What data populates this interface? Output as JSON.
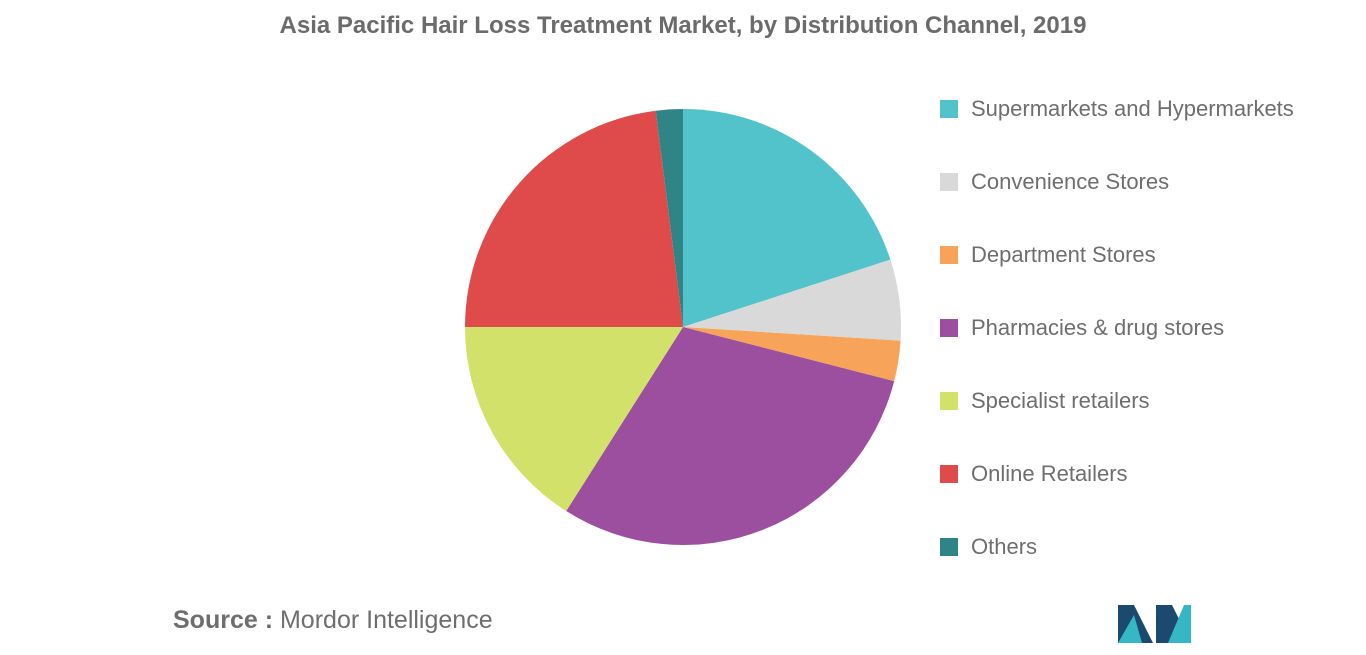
{
  "chart_data": {
    "type": "pie",
    "title": "Asia Pacific Hair Loss Treatment Market, by Distribution Channel, 2019",
    "start_angle_deg": 0,
    "direction": "clockwise",
    "legend_position": "right",
    "slices": [
      {
        "label": "Supermarkets and Hypermarkets",
        "value": 20,
        "color": "#52c3cb"
      },
      {
        "label": "Convenience Stores",
        "value": 6,
        "color": "#d9d9d9"
      },
      {
        "label": "Department Stores",
        "value": 3,
        "color": "#f7a45a"
      },
      {
        "label": "Pharmacies & drug stores",
        "value": 30,
        "color": "#9b4f9e"
      },
      {
        "label": "Specialist retailers",
        "value": 16,
        "color": "#d1e169"
      },
      {
        "label": "Online Retailers",
        "value": 23,
        "color": "#df4b4b"
      },
      {
        "label": "Others",
        "value": 2,
        "color": "#2f8585"
      }
    ]
  },
  "source": {
    "label": "Source :",
    "text": "Mordor Intelligence"
  },
  "logo": {
    "icon": "mordor-intelligence-logo-icon",
    "colors": [
      "#1c4a6e",
      "#35b7c5"
    ]
  }
}
